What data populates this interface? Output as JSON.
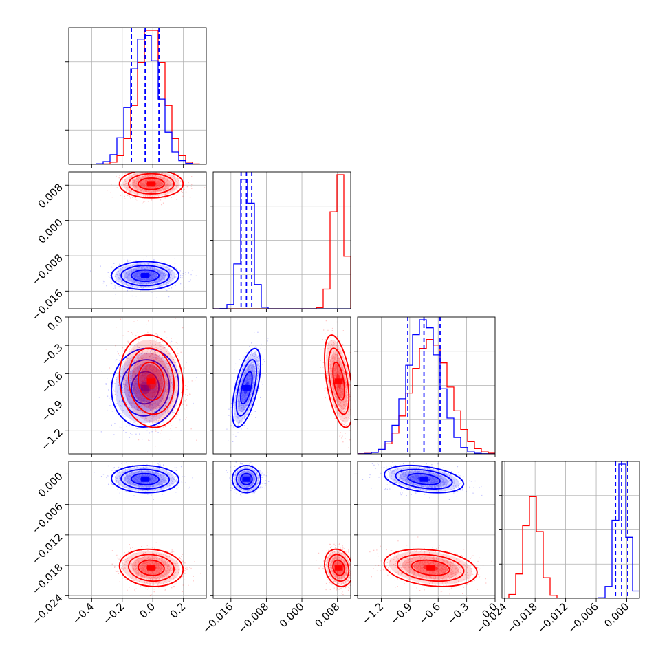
{
  "chart_data": {
    "type": "corner",
    "grid": true,
    "colors": {
      "a": "#0000ff",
      "b": "#ff0000"
    },
    "series": [
      {
        "color": "#0000ff",
        "params": [
          {
            "mean": -0.05,
            "sd": 0.09,
            "quantiles": [
              -0.14,
              -0.05,
              0.04
            ]
          },
          {
            "mean": -0.0125,
            "sd": 0.0013,
            "quantiles": [
              -0.0137,
              -0.0125,
              -0.0113
            ]
          },
          {
            "mean": -0.75,
            "sd": 0.17,
            "quantiles": [
              -0.92,
              -0.75,
              -0.58
            ]
          },
          {
            "mean": -0.001,
            "sd": 0.0011,
            "quantiles": [
              -0.0022,
              -0.001,
              0.0002
            ]
          }
        ],
        "corr": [
          [
            0,
            1,
            0.0,
            0,
            0
          ],
          [
            0,
            2,
            0.05,
            0,
            0
          ],
          [
            1,
            2,
            0.6,
            0,
            0
          ],
          [
            0,
            3,
            -0.05,
            0,
            0
          ],
          [
            1,
            3,
            0.0,
            0,
            0
          ],
          [
            2,
            3,
            -0.35,
            0,
            0
          ]
        ]
      },
      {
        "color": "#ff0000",
        "params": [
          {
            "mean": -0.01,
            "sd": 0.085
          },
          {
            "mean": 0.0083,
            "sd": 0.0013
          },
          {
            "mean": -0.68,
            "sd": 0.2
          },
          {
            "mean": -0.0185,
            "sd": 0.0015
          }
        ],
        "corr": [
          [
            0,
            1,
            0.0
          ],
          [
            0,
            2,
            -0.1
          ],
          [
            1,
            2,
            -0.5
          ],
          [
            0,
            3,
            -0.1
          ],
          [
            1,
            3,
            -0.2
          ],
          [
            2,
            3,
            -0.25
          ]
        ]
      }
    ],
    "panels": [
      {
        "index": 0,
        "range": [
          -0.55,
          0.35
        ],
        "ticks": [
          -0.4,
          -0.2,
          0.0,
          0.2
        ],
        "tick_labels": [
          "−0.4",
          "−0.2",
          "0.0",
          "0.2"
        ]
      },
      {
        "index": 1,
        "range": [
          -0.02,
          0.011
        ],
        "ticks": [
          -0.016,
          -0.008,
          0.0,
          0.008
        ],
        "tick_labels": [
          "−0.016",
          "−0.008",
          "0.000",
          "0.008"
        ]
      },
      {
        "index": 2,
        "range": [
          -1.45,
          0.0
        ],
        "ticks": [
          -1.2,
          -0.9,
          -0.6,
          -0.3,
          0.0
        ],
        "tick_labels": [
          "−1.2",
          "−0.9",
          "−0.6",
          "−0.3",
          "0.0"
        ]
      },
      {
        "index": 3,
        "range": [
          -0.0245,
          0.0025
        ],
        "ticks": [
          -0.024,
          -0.018,
          -0.012,
          -0.006,
          0.0
        ],
        "tick_labels": [
          "−0.024",
          "−0.018",
          "−0.012",
          "−0.006",
          "0.000"
        ]
      }
    ]
  }
}
